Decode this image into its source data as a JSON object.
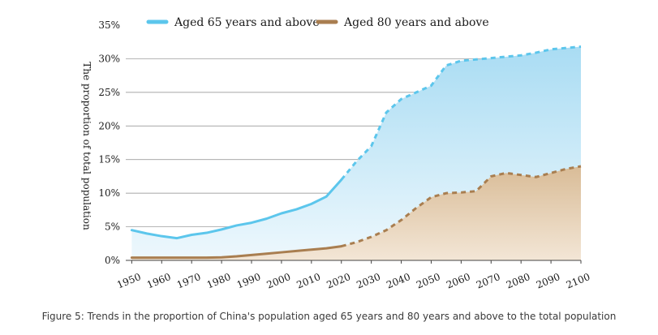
{
  "caption": "Figure 5: Trends in the proportion of China's population aged 65 years and 80 years and above to the total population",
  "chart_data": {
    "type": "area",
    "title": "",
    "xlabel": "",
    "ylabel": "The proportion of total population",
    "xlim": [
      1948,
      2100
    ],
    "ylim": [
      0,
      35
    ],
    "x_ticks": [
      1950,
      1960,
      1970,
      1980,
      1990,
      2000,
      2010,
      2020,
      2030,
      2040,
      2050,
      2060,
      2070,
      2080,
      2090,
      2100
    ],
    "y_ticks": [
      0,
      5,
      10,
      15,
      20,
      25,
      30,
      35
    ],
    "y_tick_labels": [
      "0%",
      "5%",
      "10%",
      "15%",
      "20%",
      "25%",
      "30%",
      "35%"
    ],
    "grid": "horizontal",
    "legend_position": "top",
    "projection_start": 2020,
    "series": [
      {
        "name": "Aged 65 years and above",
        "color": "#5cc6ec",
        "fill_color": "#bfe7f7",
        "x": [
          1950,
          1955,
          1960,
          1965,
          1970,
          1975,
          1980,
          1985,
          1990,
          1995,
          2000,
          2005,
          2010,
          2015,
          2020,
          2025,
          2030,
          2035,
          2040,
          2045,
          2050,
          2055,
          2060,
          2065,
          2070,
          2075,
          2080,
          2085,
          2090,
          2095,
          2100
        ],
        "values": [
          4.5,
          4.0,
          3.6,
          3.3,
          3.8,
          4.1,
          4.6,
          5.2,
          5.6,
          6.2,
          7.0,
          7.6,
          8.4,
          9.5,
          12.0,
          14.7,
          17.0,
          22.0,
          24.0,
          25.0,
          26.0,
          29.0,
          29.7,
          29.9,
          30.1,
          30.3,
          30.5,
          30.9,
          31.4,
          31.6,
          31.8
        ]
      },
      {
        "name": "Aged 80 years and above",
        "color": "#a97e50",
        "fill_color": "#e2c9aa",
        "x": [
          1950,
          1955,
          1960,
          1965,
          1970,
          1975,
          1980,
          1985,
          1990,
          1995,
          2000,
          2005,
          2010,
          2015,
          2020,
          2025,
          2030,
          2035,
          2040,
          2045,
          2050,
          2055,
          2060,
          2065,
          2070,
          2075,
          2080,
          2085,
          2090,
          2095,
          2100
        ],
        "values": [
          0.4,
          0.4,
          0.4,
          0.4,
          0.4,
          0.4,
          0.45,
          0.6,
          0.8,
          1.0,
          1.2,
          1.4,
          1.6,
          1.8,
          2.1,
          2.7,
          3.5,
          4.5,
          6.0,
          7.8,
          9.4,
          10.0,
          10.1,
          10.3,
          12.5,
          13.0,
          12.7,
          12.4,
          13.0,
          13.6,
          14.0
        ]
      }
    ]
  }
}
